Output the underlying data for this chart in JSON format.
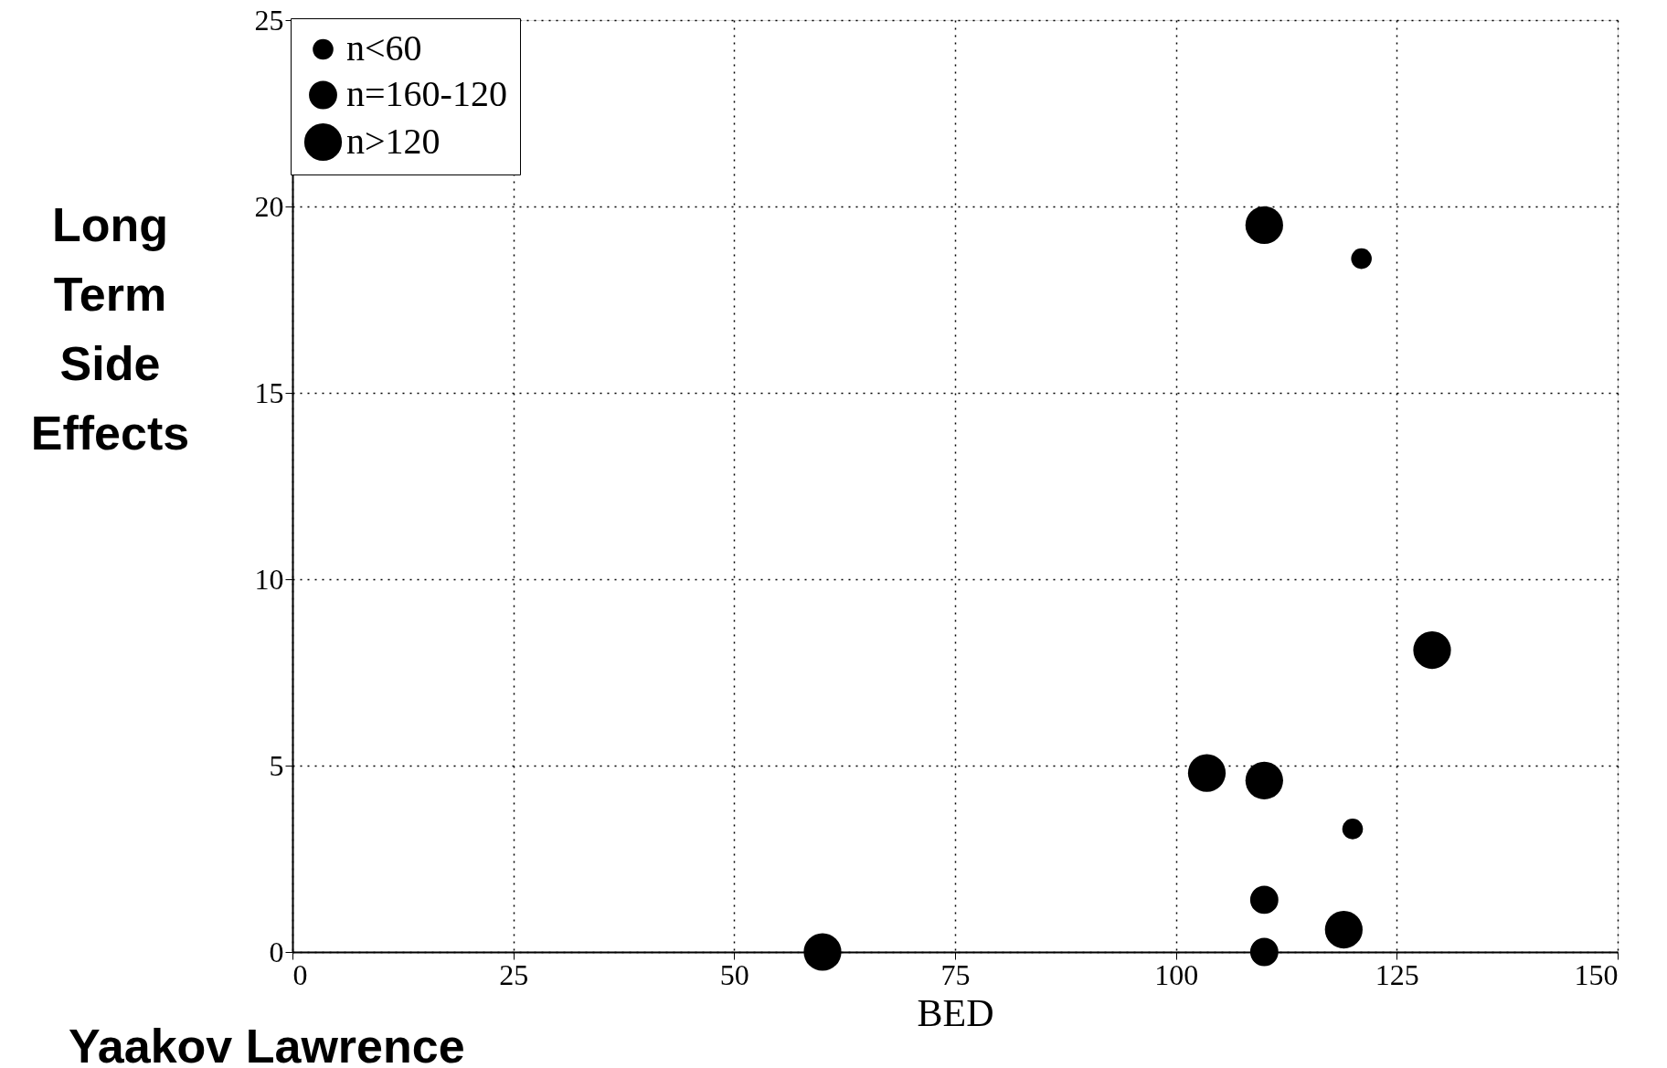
{
  "chart_data": {
    "type": "bubble",
    "xlabel": "BED",
    "ylabel": "Long Term Side Effects",
    "annotations": [
      "Yaakov Lawrence"
    ],
    "series": [
      {
        "name": "n<60",
        "color": "#000000",
        "x": [
          121,
          120
        ],
        "values": [
          18.6,
          3.3
        ],
        "sizes": [
          0.3,
          0.3
        ]
      },
      {
        "name": "n=160-120",
        "color": "#000000",
        "x": [
          110,
          110
        ],
        "values": [
          1.4,
          0
        ],
        "sizes": [
          0.56,
          0.56
        ]
      },
      {
        "name": "n>120",
        "color": "#000000",
        "x": [
          110,
          129,
          103.5,
          110,
          119,
          60
        ],
        "values": [
          19.5,
          8.1,
          4.8,
          4.6,
          0.6,
          0
        ],
        "sizes": [
          1,
          1,
          1,
          1,
          1,
          1
        ]
      }
    ],
    "xlim": [
      0,
      150
    ],
    "xticks": [
      0,
      25,
      50,
      75,
      100,
      125,
      150
    ],
    "ylim": [
      0,
      25
    ],
    "yticks": [
      0,
      5,
      10,
      15,
      20,
      25
    ],
    "grid": true,
    "legend": "top left",
    "marker": "circle"
  }
}
